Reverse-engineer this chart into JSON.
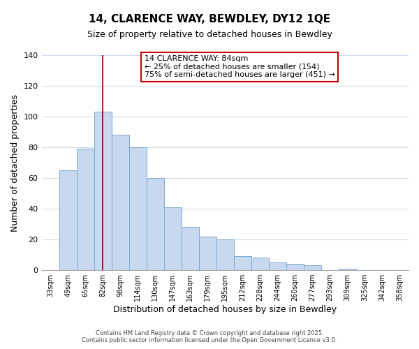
{
  "title": "14, CLARENCE WAY, BEWDLEY, DY12 1QE",
  "subtitle": "Size of property relative to detached houses in Bewdley",
  "xlabel": "Distribution of detached houses by size in Bewdley",
  "ylabel": "Number of detached properties",
  "bar_labels": [
    "33sqm",
    "49sqm",
    "65sqm",
    "82sqm",
    "98sqm",
    "114sqm",
    "130sqm",
    "147sqm",
    "163sqm",
    "179sqm",
    "195sqm",
    "212sqm",
    "228sqm",
    "244sqm",
    "260sqm",
    "277sqm",
    "293sqm",
    "309sqm",
    "325sqm",
    "342sqm",
    "358sqm"
  ],
  "bar_values": [
    0,
    65,
    79,
    103,
    88,
    80,
    60,
    41,
    28,
    22,
    20,
    9,
    8,
    5,
    4,
    3,
    0,
    1,
    0,
    0,
    0
  ],
  "bar_color": "#c8d9ef",
  "bar_edge_color": "#7aaad0",
  "vline_x_idx": 3,
  "vline_color": "#8b0000",
  "annotation_title": "14 CLARENCE WAY: 84sqm",
  "annotation_line1": "← 25% of detached houses are smaller (154)",
  "annotation_line2": "75% of semi-detached houses are larger (451) →",
  "annotation_box_facecolor": "#ffffff",
  "annotation_border_color": "#cc0000",
  "ylim": [
    0,
    140
  ],
  "yticks": [
    0,
    20,
    40,
    60,
    80,
    100,
    120,
    140
  ],
  "footer1": "Contains HM Land Registry data © Crown copyright and database right 2025.",
  "footer2": "Contains public sector information licensed under the Open Government Licence v3.0.",
  "background_color": "#ffffff",
  "grid_color": "#ccdded",
  "title_fontsize": 11,
  "subtitle_fontsize": 9,
  "xlabel_fontsize": 9,
  "ylabel_fontsize": 9,
  "xtick_fontsize": 7,
  "ytick_fontsize": 8,
  "annotation_fontsize": 8,
  "footer_fontsize": 6
}
